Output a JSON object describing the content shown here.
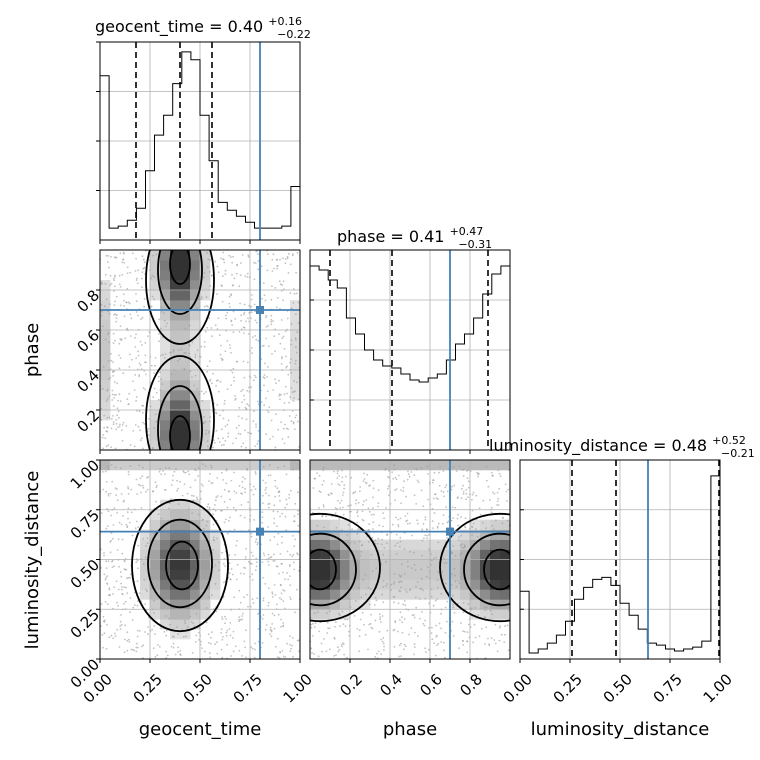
{
  "chart_data": {
    "type": "corner",
    "parameters": [
      "geocent_time",
      "phase",
      "luminosity_distance"
    ],
    "truths": {
      "geocent_time": 0.8,
      "phase": 0.7,
      "luminosity_distance": 0.64
    },
    "colors": {
      "truth": "#4682b4",
      "contour": "#000000",
      "histogram": "#000000",
      "grid": "#b0b0b0"
    },
    "grid": true,
    "titles": [
      {
        "param": "geocent_time",
        "text": "geocent_time = 0.40",
        "plus": "+0.16",
        "minus": "−0.22"
      },
      {
        "param": "phase",
        "text": "phase = 0.41",
        "plus": "+0.47",
        "minus": "−0.31"
      },
      {
        "param": "luminosity_distance",
        "text": "luminosity_distance = 0.48",
        "plus": "+0.52",
        "minus": "−0.21"
      }
    ],
    "histograms": [
      {
        "param": "geocent_time",
        "range": [
          0,
          1
        ],
        "ylim": [
          0,
          1
        ],
        "quantiles": [
          0.18,
          0.4,
          0.56
        ],
        "bin_heights": [
          0.83,
          0.06,
          0.07,
          0.1,
          0.16,
          0.35,
          0.53,
          0.63,
          0.79,
          0.95,
          0.91,
          0.63,
          0.4,
          0.19,
          0.15,
          0.12,
          0.09,
          0.06,
          0.06,
          0.06,
          0.07,
          0.27
        ]
      },
      {
        "param": "phase",
        "range": [
          0,
          1
        ],
        "ylim": [
          0,
          1
        ],
        "quantiles": [
          0.1,
          0.41,
          0.89
        ],
        "bin_heights": [
          0.92,
          0.9,
          0.85,
          0.81,
          0.66,
          0.58,
          0.5,
          0.45,
          0.42,
          0.41,
          0.38,
          0.35,
          0.34,
          0.36,
          0.38,
          0.45,
          0.53,
          0.58,
          0.66,
          0.78,
          0.88,
          0.92
        ]
      },
      {
        "param": "luminosity_distance",
        "range": [
          0,
          1
        ],
        "ylim": [
          0,
          1
        ],
        "quantiles": [
          0.26,
          0.48,
          0.995
        ],
        "bin_heights": [
          0.34,
          0.03,
          0.05,
          0.08,
          0.12,
          0.19,
          0.3,
          0.36,
          0.4,
          0.41,
          0.37,
          0.28,
          0.22,
          0.15,
          0.08,
          0.07,
          0.05,
          0.04,
          0.05,
          0.06,
          0.09,
          0.92
        ]
      }
    ],
    "scatter2d": [
      {
        "x": "geocent_time",
        "y": "phase",
        "xlim": [
          0,
          1
        ],
        "ylim": [
          0,
          1
        ],
        "truth": [
          0.8,
          0.7
        ]
      },
      {
        "x": "geocent_time",
        "y": "luminosity_distance",
        "xlim": [
          0,
          1
        ],
        "ylim": [
          0,
          1
        ],
        "truth": [
          0.8,
          0.64
        ]
      },
      {
        "x": "phase",
        "y": "luminosity_distance",
        "xlim": [
          0,
          1
        ],
        "ylim": [
          0,
          1
        ],
        "truth": [
          0.7,
          0.64
        ]
      }
    ],
    "axes": {
      "geocent_time": {
        "xticks": [
          "0.00",
          "0.25",
          "0.50",
          "0.75",
          "1.00"
        ],
        "xtick_values": [
          0,
          0.25,
          0.5,
          0.75,
          1.0
        ]
      },
      "phase": {
        "xticks": [
          "0.2",
          "0.4",
          "0.6",
          "0.8"
        ],
        "xtick_values": [
          0.2,
          0.4,
          0.6,
          0.8
        ],
        "yticks": [
          "0.2",
          "0.4",
          "0.6",
          "0.8"
        ],
        "ytick_values": [
          0.2,
          0.4,
          0.6,
          0.8
        ]
      },
      "luminosity_distance": {
        "xticks": [
          "0.00",
          "0.25",
          "0.50",
          "0.75",
          "1.00"
        ],
        "xtick_values": [
          0,
          0.25,
          0.5,
          0.75,
          1.0
        ],
        "yticks": [
          "0.00",
          "0.25",
          "0.50",
          "0.75",
          "1.00"
        ],
        "ytick_values": [
          0,
          0.25,
          0.5,
          0.75,
          1.0
        ]
      }
    },
    "xlabels": [
      "geocent_time",
      "phase",
      "luminosity_distance"
    ],
    "ylabels": [
      "phase",
      "luminosity_distance"
    ]
  }
}
